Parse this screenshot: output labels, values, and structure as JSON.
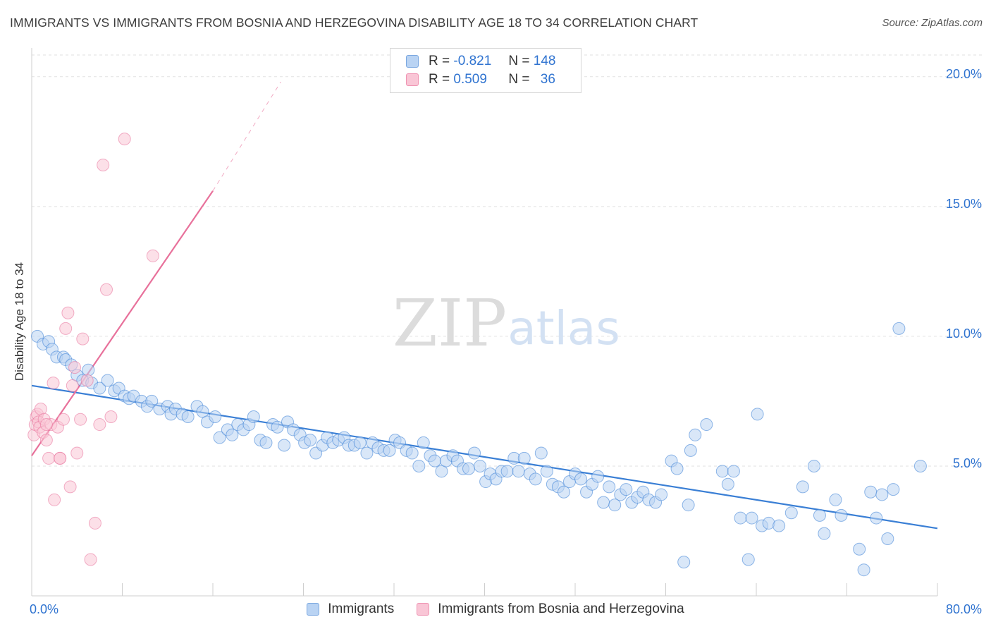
{
  "title": "IMMIGRANTS VS IMMIGRANTS FROM BOSNIA AND HERZEGOVINA DISABILITY AGE 18 TO 34 CORRELATION CHART",
  "source": "Source: ZipAtlas.com",
  "watermark": {
    "zip": "ZIP",
    "atlas": "atlas"
  },
  "legend": {
    "rows": [
      {
        "r_label": "R =",
        "r_value": "-0.821",
        "n_label": "N =",
        "n_value": "148"
      },
      {
        "r_label": "R =",
        "r_value": "0.509",
        "n_label": "N =",
        "n_value": "36"
      }
    ]
  },
  "chart_data": {
    "type": "scatter",
    "ylabel": "Disability Age 18 to 34",
    "x_range": [
      0,
      80
    ],
    "y_range": [
      0,
      21
    ],
    "x_tick_labels": [
      "0.0%",
      "80.0%"
    ],
    "y_ticks": [
      {
        "value": 5,
        "label": "5.0%"
      },
      {
        "value": 10,
        "label": "10.0%"
      },
      {
        "value": 15,
        "label": "15.0%"
      },
      {
        "value": 20,
        "label": "20.0%"
      }
    ],
    "grid": "horizontal dashed",
    "colors": {
      "blue": "#3a7fd5",
      "blue_fill": "#b9d3f3",
      "pink": "#e8719b",
      "pink_fill": "#f9c6d6",
      "tick_label": "#2f73d0"
    },
    "series": [
      {
        "name": "Immigrants",
        "color": "blue",
        "trend": {
          "x0": 0,
          "y0": 8.1,
          "x1": 80,
          "y1": 2.6
        },
        "points": [
          [
            0.5,
            10.0
          ],
          [
            1.0,
            9.7
          ],
          [
            1.5,
            9.8
          ],
          [
            1.8,
            9.5
          ],
          [
            2.2,
            9.2
          ],
          [
            2.8,
            9.2
          ],
          [
            3.0,
            9.1
          ],
          [
            3.5,
            8.9
          ],
          [
            4.0,
            8.5
          ],
          [
            4.5,
            8.3
          ],
          [
            5.0,
            8.7
          ],
          [
            5.3,
            8.2
          ],
          [
            6.0,
            8.0
          ],
          [
            6.7,
            8.3
          ],
          [
            7.3,
            7.9
          ],
          [
            7.7,
            8.0
          ],
          [
            8.2,
            7.7
          ],
          [
            8.6,
            7.6
          ],
          [
            9.0,
            7.7
          ],
          [
            9.7,
            7.5
          ],
          [
            10.2,
            7.3
          ],
          [
            10.6,
            7.5
          ],
          [
            11.3,
            7.2
          ],
          [
            12.0,
            7.3
          ],
          [
            12.3,
            7.0
          ],
          [
            12.7,
            7.2
          ],
          [
            13.3,
            7.0
          ],
          [
            13.8,
            6.9
          ],
          [
            14.6,
            7.3
          ],
          [
            15.1,
            7.1
          ],
          [
            15.5,
            6.7
          ],
          [
            16.2,
            6.9
          ],
          [
            16.6,
            6.1
          ],
          [
            17.3,
            6.4
          ],
          [
            17.7,
            6.2
          ],
          [
            18.2,
            6.6
          ],
          [
            18.7,
            6.4
          ],
          [
            19.2,
            6.6
          ],
          [
            19.6,
            6.9
          ],
          [
            20.2,
            6.0
          ],
          [
            20.7,
            5.9
          ],
          [
            21.3,
            6.6
          ],
          [
            21.7,
            6.5
          ],
          [
            22.3,
            5.8
          ],
          [
            22.6,
            6.7
          ],
          [
            23.1,
            6.4
          ],
          [
            23.7,
            6.2
          ],
          [
            24.1,
            5.9
          ],
          [
            24.6,
            6.0
          ],
          [
            25.1,
            5.5
          ],
          [
            25.7,
            5.8
          ],
          [
            26.1,
            6.1
          ],
          [
            26.6,
            5.9
          ],
          [
            27.1,
            6.0
          ],
          [
            27.6,
            6.1
          ],
          [
            28.0,
            5.8
          ],
          [
            28.5,
            5.8
          ],
          [
            29.0,
            5.9
          ],
          [
            29.6,
            5.5
          ],
          [
            30.1,
            5.9
          ],
          [
            30.6,
            5.7
          ],
          [
            31.1,
            5.6
          ],
          [
            31.6,
            5.6
          ],
          [
            32.1,
            6.0
          ],
          [
            32.5,
            5.9
          ],
          [
            33.1,
            5.6
          ],
          [
            33.6,
            5.5
          ],
          [
            34.2,
            5.0
          ],
          [
            34.6,
            5.9
          ],
          [
            35.2,
            5.4
          ],
          [
            35.6,
            5.2
          ],
          [
            36.2,
            4.8
          ],
          [
            36.6,
            5.2
          ],
          [
            37.2,
            5.4
          ],
          [
            37.6,
            5.2
          ],
          [
            38.1,
            4.9
          ],
          [
            38.6,
            4.9
          ],
          [
            39.1,
            5.5
          ],
          [
            39.6,
            5.0
          ],
          [
            40.1,
            4.4
          ],
          [
            40.5,
            4.7
          ],
          [
            41.0,
            4.5
          ],
          [
            41.5,
            4.8
          ],
          [
            42.0,
            4.8
          ],
          [
            42.6,
            5.3
          ],
          [
            43.0,
            4.8
          ],
          [
            43.5,
            5.3
          ],
          [
            44.0,
            4.7
          ],
          [
            44.5,
            4.5
          ],
          [
            45.0,
            5.5
          ],
          [
            45.5,
            4.8
          ],
          [
            46.0,
            4.3
          ],
          [
            46.5,
            4.2
          ],
          [
            47.0,
            4.0
          ],
          [
            47.5,
            4.4
          ],
          [
            48.0,
            4.7
          ],
          [
            48.5,
            4.5
          ],
          [
            49.0,
            4.0
          ],
          [
            49.5,
            4.3
          ],
          [
            50.0,
            4.6
          ],
          [
            50.5,
            3.6
          ],
          [
            51.0,
            4.2
          ],
          [
            51.5,
            3.5
          ],
          [
            52.0,
            3.9
          ],
          [
            52.5,
            4.1
          ],
          [
            53.0,
            3.6
          ],
          [
            53.5,
            3.8
          ],
          [
            54.0,
            4.0
          ],
          [
            54.5,
            3.7
          ],
          [
            55.1,
            3.6
          ],
          [
            55.6,
            3.9
          ],
          [
            56.5,
            5.2
          ],
          [
            57.0,
            4.9
          ],
          [
            57.6,
            1.3
          ],
          [
            58.0,
            3.5
          ],
          [
            58.2,
            5.6
          ],
          [
            58.6,
            6.2
          ],
          [
            59.6,
            6.6
          ],
          [
            61.0,
            4.8
          ],
          [
            61.5,
            4.3
          ],
          [
            62.0,
            4.8
          ],
          [
            62.6,
            3.0
          ],
          [
            63.3,
            1.4
          ],
          [
            63.6,
            3.0
          ],
          [
            64.1,
            7.0
          ],
          [
            64.5,
            2.7
          ],
          [
            65.1,
            2.8
          ],
          [
            66.0,
            2.7
          ],
          [
            67.1,
            3.2
          ],
          [
            68.1,
            4.2
          ],
          [
            69.1,
            5.0
          ],
          [
            69.6,
            3.1
          ],
          [
            70.0,
            2.4
          ],
          [
            71.0,
            3.7
          ],
          [
            71.5,
            3.1
          ],
          [
            73.1,
            1.8
          ],
          [
            73.5,
            1.0
          ],
          [
            74.1,
            4.0
          ],
          [
            74.6,
            3.0
          ],
          [
            75.1,
            3.9
          ],
          [
            75.6,
            2.2
          ],
          [
            76.1,
            4.1
          ],
          [
            76.6,
            10.3
          ],
          [
            78.5,
            5.0
          ]
        ]
      },
      {
        "name": "Immigrants from Bosnia and Herzegovina",
        "color": "pink",
        "trend": {
          "x0": 0,
          "y0": 5.4,
          "x1": 16,
          "y1": 15.6,
          "dash_x1": 22,
          "dash_y1": 19.8
        },
        "points": [
          [
            0.2,
            6.2
          ],
          [
            0.3,
            6.6
          ],
          [
            0.4,
            6.9
          ],
          [
            0.5,
            7.0
          ],
          [
            0.6,
            6.7
          ],
          [
            0.7,
            6.5
          ],
          [
            0.8,
            7.2
          ],
          [
            1.0,
            6.3
          ],
          [
            1.1,
            6.8
          ],
          [
            1.3,
            6.0
          ],
          [
            1.5,
            5.3
          ],
          [
            1.7,
            6.6
          ],
          [
            1.9,
            8.2
          ],
          [
            2.0,
            3.7
          ],
          [
            2.3,
            6.5
          ],
          [
            2.5,
            5.3
          ],
          [
            2.8,
            6.8
          ],
          [
            3.0,
            10.3
          ],
          [
            3.2,
            10.9
          ],
          [
            3.4,
            4.2
          ],
          [
            3.6,
            8.1
          ],
          [
            3.8,
            8.8
          ],
          [
            4.0,
            5.5
          ],
          [
            4.3,
            6.8
          ],
          [
            4.5,
            9.9
          ],
          [
            4.9,
            8.3
          ],
          [
            5.2,
            1.4
          ],
          [
            5.6,
            2.8
          ],
          [
            6.0,
            6.6
          ],
          [
            6.3,
            16.6
          ],
          [
            6.6,
            11.8
          ],
          [
            7.0,
            6.9
          ],
          [
            8.2,
            17.6
          ],
          [
            10.7,
            13.1
          ],
          [
            2.5,
            5.3
          ],
          [
            1.3,
            6.6
          ]
        ]
      }
    ]
  },
  "bottom_legend": [
    "Immigrants",
    "Immigrants from Bosnia and Herzegovina"
  ]
}
